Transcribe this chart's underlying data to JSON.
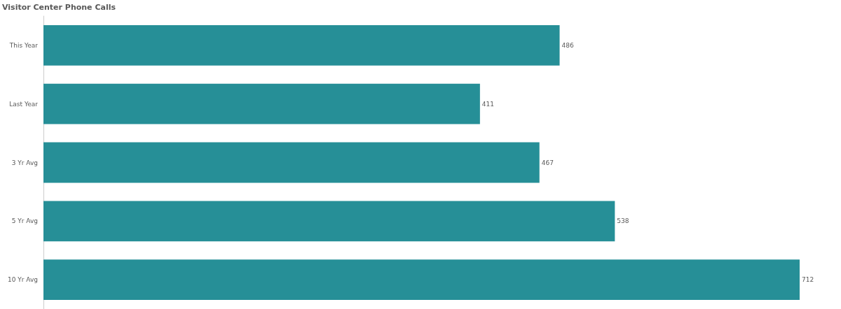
{
  "chart_data": {
    "type": "bar",
    "title": "Visitor Center Phone Calls",
    "orientation": "horizontal",
    "categories": [
      "This Year",
      "Last Year",
      "3 Yr Avg",
      "5 Yr Avg",
      "10 Yr Avg"
    ],
    "values": [
      486,
      411,
      467,
      538,
      712
    ],
    "color": "#268f97",
    "data_labels": true
  }
}
